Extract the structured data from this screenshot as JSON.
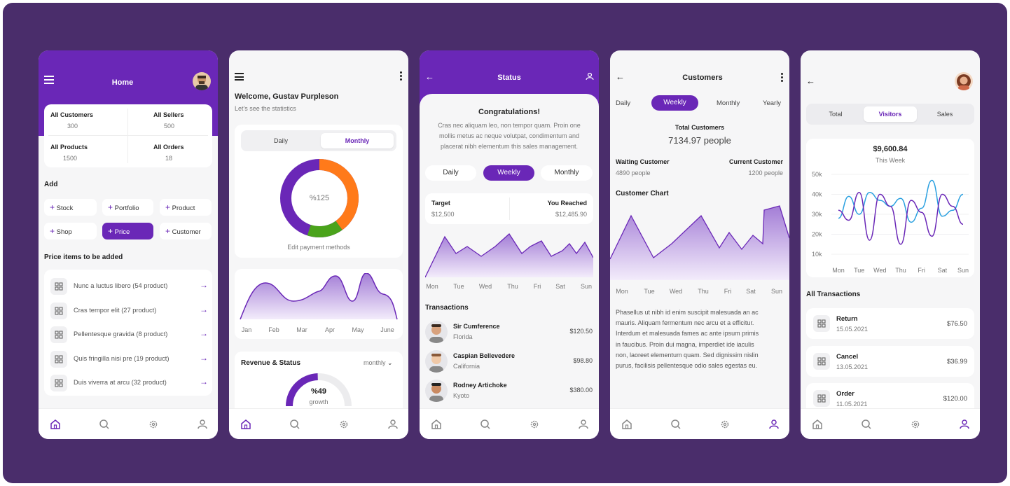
{
  "colors": {
    "frame_bg": "#4a2d6b",
    "accent": "#6a27b7",
    "accent_light": "#c9b0e8",
    "orange": "#ff7a1a",
    "green": "#4aa31b",
    "blue": "#2aa0e0"
  },
  "p1": {
    "title": "Home",
    "stats": [
      {
        "label": "All Customers",
        "value": "300"
      },
      {
        "label": "All Sellers",
        "value": "500"
      },
      {
        "label": "All Products",
        "value": "1500"
      },
      {
        "label": "All Orders",
        "value": "18"
      }
    ],
    "add_title": "Add",
    "chips": [
      "Stock",
      "Portfolio",
      "Product",
      "Shop",
      "Price",
      "Customer"
    ],
    "list_title": "Price items to be added",
    "items": [
      "Nunc a luctus libero (54 product)",
      "Cras tempor elit (27 product)",
      "Pellentesque gravida (8 product)",
      "Quis fringilla nisi pre (19 product)",
      "Duis viverra at arcu (32 product)"
    ]
  },
  "p2": {
    "welcome": "Welcome, Gustav Purpleson",
    "subtitle": "Let's see the statistics",
    "toggle": [
      "Daily",
      "Monthly"
    ],
    "donut_label": "%125",
    "donut_caption": "Edit payment methods",
    "months": [
      "Jan",
      "Feb",
      "Mar",
      "Apr",
      "May",
      "June"
    ],
    "revenue_title": "Revenue & Status",
    "revenue_select": "monthly",
    "gauge_value": "%49",
    "gauge_caption": "growth",
    "gauge_fraction": 0.49
  },
  "p3": {
    "title": "Status",
    "congrats": "Congratulations!",
    "paragraph": [
      "Cras nec aliquam leo, non tempor quam. Proin one",
      "mollis metus ac neque volutpat, condimentum and",
      "placerat nibh elementum this sales management."
    ],
    "tabs": [
      "Daily",
      "Weekly",
      "Monthly"
    ],
    "target_label": "Target",
    "target_value": "$12,500",
    "reached_label": "You Reached",
    "reached_value": "$12,485.90",
    "days": [
      "Mon",
      "Tue",
      "Wed",
      "Thu",
      "Fri",
      "Sat",
      "Sun"
    ],
    "transactions_title": "Transactions",
    "transactions": [
      {
        "name": "Sir Cumference",
        "place": "Florida",
        "amount": "$120.50"
      },
      {
        "name": "Caspian Bellevedere",
        "place": "California",
        "amount": "$98.80"
      },
      {
        "name": "Rodney Artichoke",
        "place": "Kyoto",
        "amount": "$380.00"
      }
    ]
  },
  "p4": {
    "title": "Customers",
    "tabs": [
      "Daily",
      "Weekly",
      "Monthly",
      "Yearly"
    ],
    "total_label": "Total Customers",
    "total_value": "7134.97 people",
    "waiting_label": "Waiting Customer",
    "waiting_value": "4890 people",
    "current_label": "Current Customer",
    "current_value": "1200 people",
    "chart_title": "Customer Chart",
    "days": [
      "Mon",
      "Tue",
      "Wed",
      "Thu",
      "Fri",
      "Sat",
      "Sun"
    ],
    "paragraph": [
      "Phasellus ut nibh id enim suscipit malesuada an ac",
      "mauris. Aliquam fermentum nec arcu et a efficitur.",
      "Interdum et malesuada fames ac ante ipsum primis",
      "in faucibus. Proin dui magna, imperdiet ide iaculis",
      "non, laoreet elementum quam. Sed dignissim nislin",
      "purus, facilisis pellentesque odio sales egestas eu."
    ]
  },
  "p5": {
    "tabs": [
      "Total",
      "Visitors",
      "Sales"
    ],
    "amount": "$9,600.84",
    "period": "This Week",
    "chart_data": {
      "type": "line",
      "categories": [
        "Mon",
        "Tue",
        "Wed",
        "Thu",
        "Fri",
        "Sat",
        "Sun"
      ],
      "yticks": [
        "50k",
        "40k",
        "30k",
        "20k",
        "10k"
      ],
      "ylim": [
        10000,
        50000
      ],
      "series": [
        {
          "color": "#2aa0e0",
          "x": [
            0,
            0.5,
            1,
            1.5,
            2,
            2.5,
            3,
            3.5,
            4,
            4.5,
            5,
            5.5,
            6
          ],
          "values": [
            28000,
            39000,
            30000,
            41000,
            37000,
            34000,
            38000,
            26000,
            33000,
            47000,
            29000,
            32000,
            40000
          ]
        },
        {
          "color": "#6a27b7",
          "x": [
            0,
            0.5,
            1,
            1.5,
            2,
            2.5,
            3,
            3.5,
            4,
            4.5,
            5,
            5.5,
            6
          ],
          "values": [
            32000,
            27000,
            41000,
            17000,
            40000,
            34000,
            15000,
            37000,
            31000,
            19000,
            40000,
            34000,
            25000
          ]
        }
      ]
    },
    "transactions_title": "All Transactions",
    "transactions": [
      {
        "type": "Return",
        "date": "15.05.2021",
        "amount": "$76.50"
      },
      {
        "type": "Cancel",
        "date": "13.05.2021",
        "amount": "$36.99"
      },
      {
        "type": "Order",
        "date": "11.05.2021",
        "amount": "$120.00"
      }
    ]
  }
}
